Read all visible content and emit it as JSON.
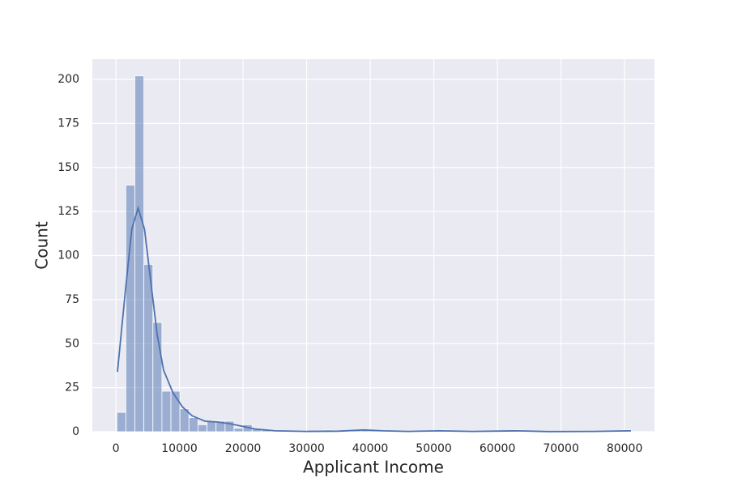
{
  "chart_data": {
    "type": "histogram",
    "x_label": "Applicant Income",
    "y_label": "Count",
    "bins": [
      150,
      1568.4,
      2986.8,
      4405.3,
      5823.7,
      7242.1,
      8660.5,
      10078.9,
      11497.4,
      12915.8,
      14334.2,
      15752.6,
      17171.1,
      18589.5,
      20007.9,
      21426.3,
      22844.7,
      24263.2,
      25681.6,
      27100,
      28518.4,
      29936.8,
      31355.3,
      32773.7,
      34192.1,
      35610.5,
      37028.9,
      38447.4,
      39865.8,
      41284.2,
      42702.6,
      44121.1,
      45539.5,
      46957.9,
      48376.3,
      49794.7,
      51213.2,
      52631.6,
      54050,
      55468.4,
      56886.8,
      58305.3,
      59723.7,
      61142.1,
      62560.5,
      63978.9,
      65397.4,
      66815.8,
      68234.2,
      69652.6,
      71071.1,
      72489.5,
      73907.9,
      75326.3,
      76744.7,
      78163.2,
      79581.6,
      81000
    ],
    "counts": [
      11,
      140,
      202,
      95,
      62,
      23,
      23,
      13,
      8,
      4,
      6,
      6,
      6,
      2,
      4,
      2,
      1,
      0,
      0,
      0,
      0,
      0,
      0,
      1,
      0,
      0,
      1,
      1,
      1,
      0,
      0,
      0,
      0,
      0,
      0,
      0,
      1,
      0,
      0,
      0,
      0,
      0,
      0,
      0,
      1,
      0,
      0,
      0,
      0,
      0,
      0,
      0,
      0,
      0,
      0,
      0,
      1
    ],
    "color": "#4c72b0",
    "kde": {
      "color": "#4c72b0",
      "x": [
        250,
        1500,
        2500,
        3500,
        4500,
        5500,
        6500,
        7500,
        9000,
        10500,
        12000,
        14000,
        16000,
        18000,
        20000,
        22000,
        25000,
        30000,
        35000,
        39000,
        42000,
        46000,
        51000,
        56000,
        63000,
        68000,
        75000,
        81000
      ],
      "y": [
        34,
        80,
        115,
        127,
        115,
        85,
        55,
        35,
        22,
        14,
        9,
        6,
        5.5,
        4.5,
        3,
        1.5,
        0.5,
        0.2,
        0.3,
        1,
        0.5,
        0.2,
        0.5,
        0.2,
        0.5,
        0.1,
        0.2,
        0.5
      ]
    },
    "xlim": [
      -3700,
      84700
    ],
    "ylim": [
      0,
      211.5
    ],
    "xticks": [
      0,
      10000,
      20000,
      30000,
      40000,
      50000,
      60000,
      70000,
      80000
    ],
    "yticks": [
      0,
      25,
      50,
      75,
      100,
      125,
      150,
      175,
      200
    ],
    "grid": true
  }
}
